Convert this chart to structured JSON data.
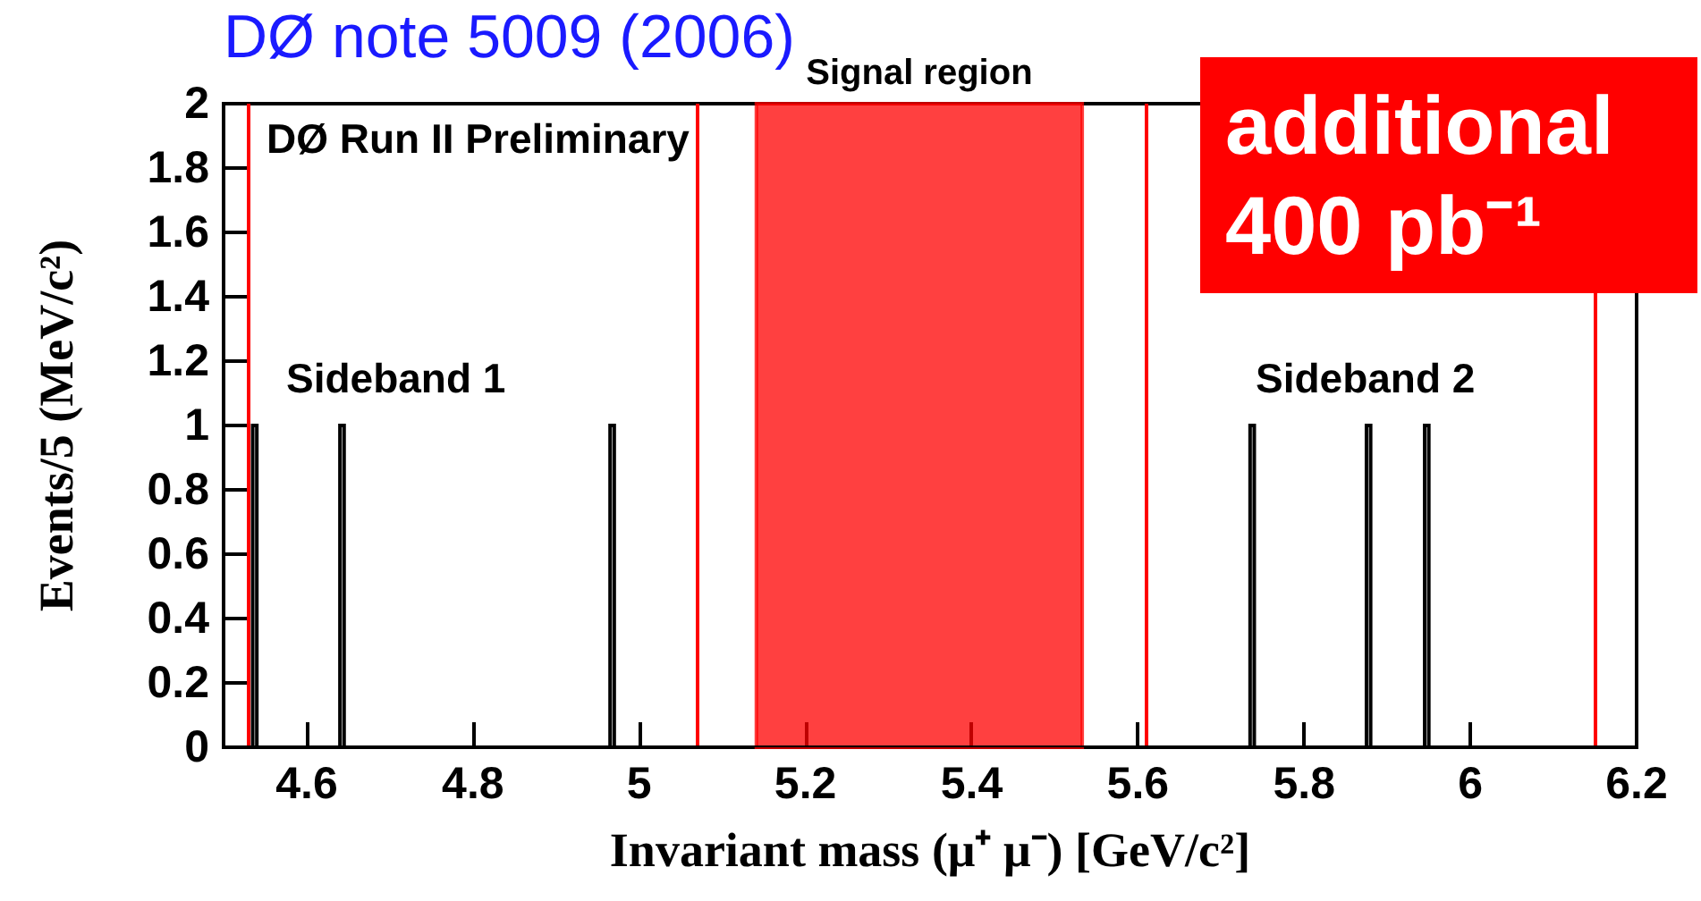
{
  "chart_data": {
    "type": "histogram",
    "title": "DØ note 5009 (2006)",
    "xlabel": "Invariant mass (μ⁺ μ⁻) [GeV/c²]",
    "ylabel": "Events/5 (MeV/c²)",
    "bins": [
      4.5,
      4.535,
      4.54,
      4.64,
      4.645,
      4.965,
      4.97,
      5.735,
      5.74,
      5.875,
      5.88,
      5.945,
      5.95,
      6.2
    ],
    "values": [
      0,
      1,
      0,
      1,
      0,
      1,
      0,
      1,
      0,
      1,
      0,
      1,
      0
    ],
    "color": "#000000",
    "xlim": [
      4.5,
      6.2
    ],
    "xticks": [
      4.6,
      4.8,
      5,
      5.2,
      5.4,
      5.6,
      5.8,
      6,
      6.2
    ],
    "ylim": [
      0,
      2
    ],
    "yticks": [
      0,
      0.2,
      0.4,
      0.6,
      0.8,
      1,
      1.2,
      1.4,
      1.6,
      1.8,
      2
    ],
    "grid": false,
    "ref_lines": [
      {
        "axis": "x",
        "value": 4.527,
        "color": "#ff0000"
      },
      {
        "axis": "x",
        "value": 5.067,
        "color": "#ff0000"
      },
      {
        "axis": "x",
        "value": 5.607,
        "color": "#ff0000"
      },
      {
        "axis": "x",
        "value": 6.148,
        "color": "#ff0000"
      }
    ],
    "bands": [
      {
        "axis": "x",
        "from": 5.141,
        "to": 5.533,
        "label": "Signal region",
        "color": "#ff0000"
      }
    ],
    "annotations": [
      "DØ Run II Preliminary",
      "additional 400 pb⁻¹",
      "Sideband 1",
      "Sideband 2"
    ]
  }
}
